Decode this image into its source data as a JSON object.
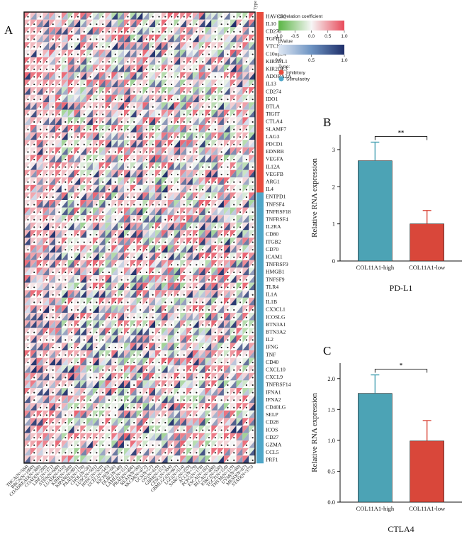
{
  "panels": {
    "a": "A",
    "b": "B",
    "c": "C"
  },
  "heatmap": {
    "type_header": "Type",
    "genes": [
      "HAVCR2",
      "IL10",
      "CD276",
      "TGFB1",
      "VTCN1",
      "C10orf54",
      "KIR2DL1",
      "KIR2DL3",
      "ADORA2A",
      "IL13",
      "CD274",
      "IDO1",
      "BTLA",
      "TIGIT",
      "CTLA4",
      "SLAMF7",
      "LAG3",
      "PDCD1",
      "EDNRB",
      "VEGFA",
      "IL12A",
      "VEGFB",
      "ARG1",
      "IL4",
      "ENTPD1",
      "TNFSF4",
      "TNFRSF18",
      "TNFRSF4",
      "IL2RA",
      "CD80",
      "ITGB2",
      "CD70",
      "ICAM1",
      "TNFRSF9",
      "HMGB1",
      "TNFSF9",
      "TLR4",
      "IL1A",
      "IL1B",
      "CX3CL1",
      "ICOSLG",
      "BTN3A1",
      "BTN3A2",
      "IL2",
      "IFNG",
      "TNF",
      "CD40",
      "CXCL10",
      "CXCL9",
      "TNFRSF14",
      "IFNA1",
      "IFNA2",
      "CD40LG",
      "SELP",
      "CD28",
      "ICOS",
      "CD27",
      "GZMA",
      "CCL5",
      "PRF1"
    ],
    "inhibitory_count": 24,
    "cancers": [
      "THCA(N=504)",
      "BRCA(N=1090)",
      "COADREAD(N=380)",
      "COAD(N=290)",
      "LIHC(N=371)",
      "STES(N=600)",
      "LUAD(N=510)",
      "KIRP(N=288)",
      "KIPAN(N=891)",
      "PAAD(N=178)",
      "CHOL(N=36)",
      "LUSC(N=501)",
      "HNSC(N=520)",
      "UCEC(N=545)",
      "KICH(N=66)",
      "DLBC(N=48)",
      "LAML(N=151)",
      "PRAD(N=496)",
      "READ(N=90)",
      "SKCM(N=472)",
      "UCS(N=57)",
      "OV(N=419)",
      "GBM(N=153)",
      "CESC(N=304)",
      "GBMLGG(N=667)",
      "LGG(N=514)",
      "SARC(N=259)",
      "ACC(N=79)",
      "PCPG(N=178)",
      "ESCA(N=182)",
      "BLCA(N=408)",
      "KIRC(N=530)",
      "TGCT(N=150)",
      "THYM(N=119)",
      "UVM(N=80)",
      "MESO(N=87)",
      "STAD(N=375)"
    ],
    "legend": {
      "corr_title": "correlation coefficient",
      "corr_ticks": [
        "-1.0",
        "-0.5",
        "0.0",
        "0.5",
        "1.0"
      ],
      "p_title": "pValue",
      "p_ticks": [
        "0.0",
        "0.5",
        "1.0"
      ],
      "type_title": "Type:",
      "inhibitory_label": "Inhibitory",
      "stimulatory_label": "Stimulaotry"
    },
    "colors": {
      "inhibitory": "#e84c3d",
      "stimulatory": "#4fa6c8",
      "corr_low": "#5ab544",
      "corr_high": "#e84a5a",
      "p_high": "#1f2f6a",
      "p_low": "#dfe8f4"
    }
  },
  "chart_data": [
    {
      "type": "bar",
      "title": "PD-L1",
      "categories": [
        "COL11A1-high",
        "COL11A1-low"
      ],
      "values": [
        2.7,
        1.0
      ],
      "errors": [
        0.5,
        0.36
      ],
      "ylabel": "Relative RNA expression",
      "ylim": [
        0,
        3.4
      ],
      "yticks": [
        "0",
        "1",
        "2",
        "3"
      ],
      "significance": "**",
      "colors": [
        "#4ca3b5",
        "#d9473a"
      ]
    },
    {
      "type": "bar",
      "title": "CTLA4",
      "categories": [
        "COL11A1-high",
        "COL11A1-low"
      ],
      "values": [
        1.76,
        0.99
      ],
      "errors": [
        0.3,
        0.33
      ],
      "ylabel": "Relative RNA expression",
      "ylim": [
        0,
        2.25
      ],
      "yticks": [
        "0.0",
        "0.5",
        "1.0",
        "1.5",
        "2.0"
      ],
      "significance": "*",
      "colors": [
        "#4ca3b5",
        "#d9473a"
      ]
    }
  ]
}
